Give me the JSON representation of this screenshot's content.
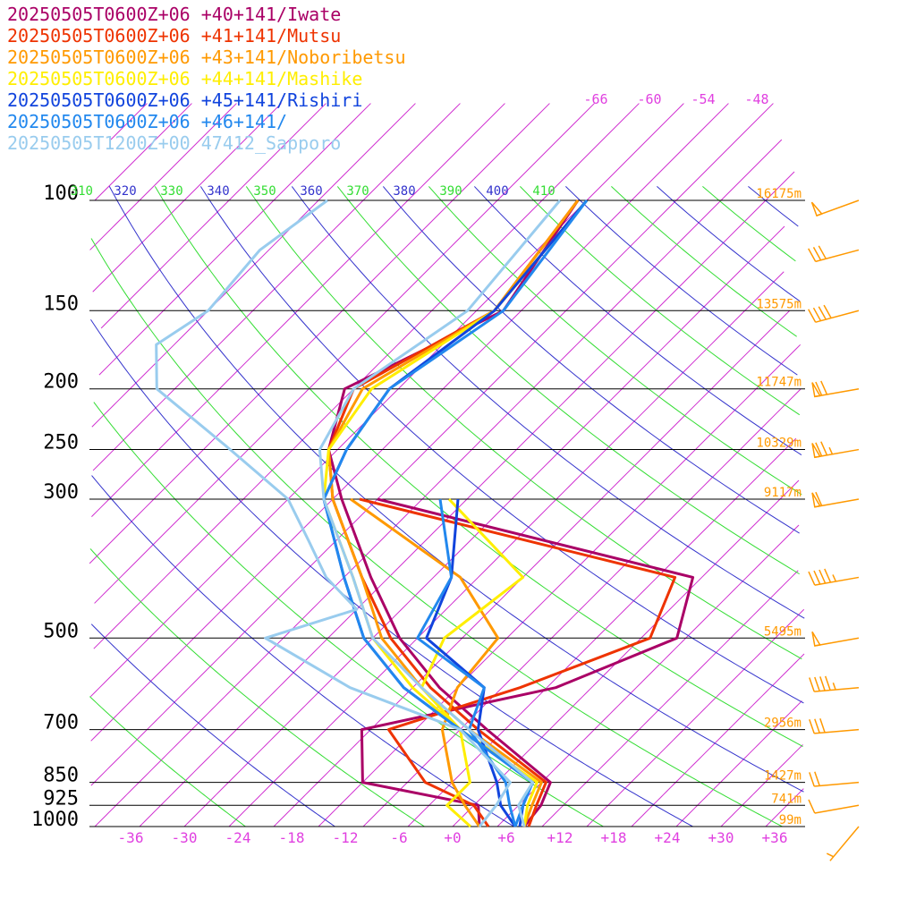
{
  "chart_data": {
    "type": "line",
    "subtype": "skew-t sounding",
    "title": "",
    "xlabel": "",
    "ylabel": "",
    "x_unit": "deg C",
    "y_unit": "hPa",
    "y_scale": "log",
    "xlim": [
      -36,
      36
    ],
    "ylim": [
      1000,
      100
    ],
    "pressure_levels": [
      {
        "p": 100,
        "label": "100",
        "height": "16175m"
      },
      {
        "p": 150,
        "label": "150",
        "height": "13575m"
      },
      {
        "p": 200,
        "label": "200",
        "height": "11747m"
      },
      {
        "p": 250,
        "label": "250",
        "height": "10329m"
      },
      {
        "p": 300,
        "label": "300",
        "height": "9117m"
      },
      {
        "p": 500,
        "label": "500",
        "height": "5495m"
      },
      {
        "p": 700,
        "label": "700",
        "height": "2956m"
      },
      {
        "p": 850,
        "label": "850",
        "height": "1427m"
      },
      {
        "p": 925,
        "label": "925",
        "height": "741m"
      },
      {
        "p": 1000,
        "label": "1000",
        "height": "99m"
      }
    ],
    "x_ticks": [
      "-36",
      "-30",
      "-24",
      "-18",
      "-12",
      "-6",
      "+0",
      "+6",
      "+12",
      "+18",
      "+24",
      "+30",
      "+36"
    ],
    "skewed_isotherm_labels": [
      "-66",
      "-60",
      "-54",
      "-48"
    ],
    "theta_labels": [
      {
        "v": "310",
        "color": "#33dd33"
      },
      {
        "v": "320",
        "color": "#3333cc"
      },
      {
        "v": "330",
        "color": "#33dd33"
      },
      {
        "v": "340",
        "color": "#3333cc"
      },
      {
        "v": "350",
        "color": "#33dd33"
      },
      {
        "v": "360",
        "color": "#3333cc"
      },
      {
        "v": "370",
        "color": "#33dd33"
      },
      {
        "v": "380",
        "color": "#3333cc"
      },
      {
        "v": "390",
        "color": "#33dd33"
      },
      {
        "v": "400",
        "color": "#3333cc"
      },
      {
        "v": "410",
        "color": "#33dd33"
      }
    ],
    "grid": true,
    "legend_position": "top-left",
    "series": [
      {
        "name": "20250505T0600Z+06 +40+141/Iwate",
        "color": "#aa0066",
        "temperature": [
          [
            1000,
            8
          ],
          [
            925,
            7.5
          ],
          [
            850,
            6
          ],
          [
            700,
            -7
          ],
          [
            600,
            -17
          ],
          [
            500,
            -27
          ],
          [
            400,
            -37
          ],
          [
            300,
            -49
          ],
          [
            250,
            -56
          ],
          [
            200,
            -61
          ],
          [
            150,
            -52
          ],
          [
            100,
            -56
          ]
        ],
        "dewpoint": [
          [
            1000,
            3
          ],
          [
            925,
            0.5
          ],
          [
            850,
            -15
          ],
          [
            700,
            -21
          ],
          [
            600,
            -4
          ],
          [
            500,
            4
          ],
          [
            400,
            -1
          ],
          [
            300,
            -45
          ]
        ]
      },
      {
        "name": "20250505T0600Z+06 +41+141/Mutsu",
        "color": "#ee3300",
        "temperature": [
          [
            1000,
            8.5
          ],
          [
            925,
            7
          ],
          [
            850,
            5.5
          ],
          [
            700,
            -8
          ],
          [
            600,
            -18
          ],
          [
            500,
            -28
          ],
          [
            400,
            -38
          ],
          [
            300,
            -50
          ],
          [
            250,
            -56
          ],
          [
            200,
            -60
          ],
          [
            150,
            -53
          ],
          [
            100,
            -56
          ]
        ],
        "dewpoint": [
          [
            1000,
            4
          ],
          [
            925,
            0
          ],
          [
            850,
            -8
          ],
          [
            700,
            -18
          ],
          [
            600,
            -8
          ],
          [
            500,
            1
          ],
          [
            400,
            -3
          ],
          [
            300,
            -47
          ]
        ]
      },
      {
        "name": "20250505T0600Z+06 +43+141/Noboribetsu",
        "color": "#ff9900",
        "temperature": [
          [
            1000,
            8
          ],
          [
            925,
            6.5
          ],
          [
            850,
            5
          ],
          [
            700,
            -9
          ],
          [
            600,
            -19
          ],
          [
            500,
            -29
          ],
          [
            400,
            -38
          ],
          [
            300,
            -50
          ],
          [
            250,
            -56
          ],
          [
            200,
            -59
          ],
          [
            150,
            -53
          ],
          [
            100,
            -56
          ]
        ],
        "dewpoint": [
          [
            1000,
            3
          ],
          [
            925,
            -1
          ],
          [
            850,
            -5
          ],
          [
            700,
            -12
          ],
          [
            600,
            -15
          ],
          [
            500,
            -16
          ],
          [
            400,
            -27
          ],
          [
            300,
            -48
          ]
        ]
      },
      {
        "name": "20250505T0600Z+06 +44+141/Mashike",
        "color": "#ffee00",
        "temperature": [
          [
            1000,
            8
          ],
          [
            925,
            6
          ],
          [
            850,
            4.5
          ],
          [
            700,
            -10
          ],
          [
            600,
            -20
          ],
          [
            500,
            -30
          ],
          [
            400,
            -39
          ],
          [
            300,
            -51
          ],
          [
            250,
            -56
          ],
          [
            200,
            -58
          ],
          [
            150,
            -53
          ],
          [
            100,
            -55
          ]
        ],
        "dewpoint": [
          [
            1000,
            2
          ],
          [
            925,
            -3
          ],
          [
            850,
            -3
          ],
          [
            700,
            -10
          ],
          [
            600,
            -19
          ],
          [
            500,
            -22
          ],
          [
            400,
            -20
          ],
          [
            300,
            -37
          ]
        ]
      },
      {
        "name": "20250505T0600Z+06 +45+141/Rishiri",
        "color": "#1144dd",
        "temperature": [
          [
            1000,
            7.5
          ],
          [
            925,
            5.5
          ],
          [
            850,
            4
          ],
          [
            700,
            -10
          ],
          [
            600,
            -21
          ],
          [
            500,
            -31
          ],
          [
            400,
            -40
          ],
          [
            300,
            -51
          ],
          [
            250,
            -54
          ],
          [
            200,
            -56
          ],
          [
            150,
            -53
          ],
          [
            100,
            -55
          ]
        ],
        "dewpoint": [
          [
            1000,
            7
          ],
          [
            925,
            3
          ],
          [
            850,
            0
          ],
          [
            700,
            -8
          ],
          [
            600,
            -12
          ],
          [
            500,
            -24
          ],
          [
            400,
            -28
          ],
          [
            300,
            -36
          ]
        ]
      },
      {
        "name": "20250505T0600Z+06 +46+141/",
        "color": "#2288ee",
        "temperature": [
          [
            1000,
            7
          ],
          [
            925,
            5.5
          ],
          [
            850,
            4
          ],
          [
            700,
            -10
          ],
          [
            600,
            -21
          ],
          [
            500,
            -31
          ],
          [
            400,
            -40
          ],
          [
            300,
            -51
          ],
          [
            250,
            -54
          ],
          [
            200,
            -56
          ],
          [
            150,
            -52
          ],
          [
            100,
            -55
          ]
        ],
        "dewpoint": [
          [
            1000,
            7
          ],
          [
            925,
            4
          ],
          [
            850,
            1
          ],
          [
            700,
            -9
          ],
          [
            600,
            -12
          ],
          [
            500,
            -25
          ],
          [
            400,
            -28
          ],
          [
            300,
            -38
          ]
        ]
      },
      {
        "name": "20250505T1200Z+00 47412_Sapporo",
        "color": "#99ccee",
        "temperature": [
          [
            1000,
            8
          ],
          [
            925,
            5
          ],
          [
            850,
            4
          ],
          [
            700,
            -9
          ],
          [
            600,
            -19
          ],
          [
            500,
            -30
          ],
          [
            400,
            -39
          ],
          [
            300,
            -51
          ],
          [
            250,
            -57
          ],
          [
            200,
            -60
          ],
          [
            150,
            -56
          ],
          [
            100,
            -58
          ]
        ],
        "dewpoint": [
          [
            1000,
            3
          ],
          [
            925,
            2.5
          ],
          [
            850,
            1.5
          ],
          [
            700,
            -10
          ],
          [
            600,
            -27
          ],
          [
            500,
            -42
          ],
          [
            450,
            -35
          ],
          [
            400,
            -42
          ],
          [
            350,
            -48
          ],
          [
            300,
            -55
          ],
          [
            250,
            -67
          ],
          [
            200,
            -82
          ],
          [
            170,
            -87
          ],
          [
            150,
            -85
          ],
          [
            120,
            -86
          ],
          [
            100,
            -84
          ]
        ]
      }
    ],
    "wind_barbs": [
      {
        "p": 100,
        "speed_kt": 50,
        "dir_deg": 250
      },
      {
        "p": 120,
        "speed_kt": 30,
        "dir_deg": 255
      },
      {
        "p": 150,
        "speed_kt": 40,
        "dir_deg": 255
      },
      {
        "p": 200,
        "speed_kt": 70,
        "dir_deg": 260
      },
      {
        "p": 250,
        "speed_kt": 75,
        "dir_deg": 260
      },
      {
        "p": 300,
        "speed_kt": 60,
        "dir_deg": 260
      },
      {
        "p": 400,
        "speed_kt": 45,
        "dir_deg": 260
      },
      {
        "p": 500,
        "speed_kt": 50,
        "dir_deg": 260
      },
      {
        "p": 600,
        "speed_kt": 45,
        "dir_deg": 265
      },
      {
        "p": 700,
        "speed_kt": 30,
        "dir_deg": 265
      },
      {
        "p": 850,
        "speed_kt": 20,
        "dir_deg": 265
      },
      {
        "p": 925,
        "speed_kt": 10,
        "dir_deg": 260
      },
      {
        "p": 1000,
        "speed_kt": 5,
        "dir_deg": 220
      }
    ]
  }
}
